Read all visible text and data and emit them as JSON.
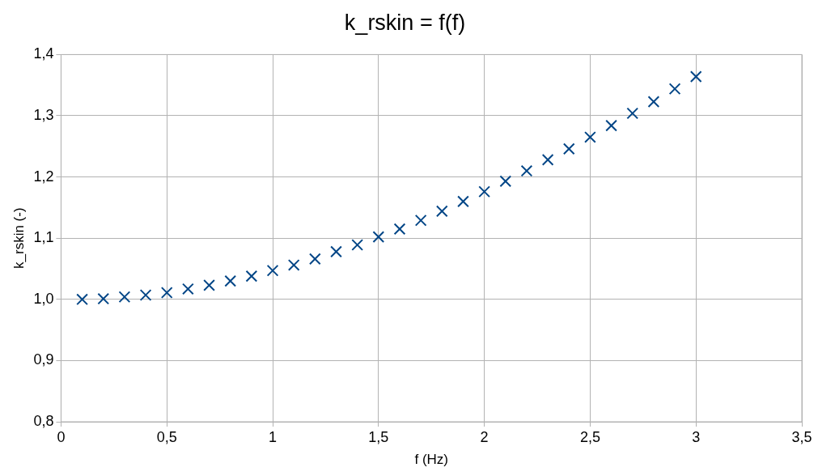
{
  "chart_data": {
    "type": "scatter",
    "title": "k_rskin = f(f)",
    "xlabel": "f (Hz)",
    "ylabel": "k_rskin (-)",
    "x": [
      0.1,
      0.2,
      0.3,
      0.4,
      0.5,
      0.6,
      0.7,
      0.8,
      0.9,
      1.0,
      1.1,
      1.2,
      1.3,
      1.4,
      1.5,
      1.6,
      1.7,
      1.8,
      1.9,
      2.0,
      2.1,
      2.2,
      2.3,
      2.4,
      2.5,
      2.6,
      2.7,
      2.8,
      2.9,
      3.0
    ],
    "series": [
      {
        "color": "#004586",
        "values": [
          1.0,
          1.001,
          1.004,
          1.007,
          1.011,
          1.017,
          1.023,
          1.03,
          1.038,
          1.047,
          1.056,
          1.066,
          1.078,
          1.089,
          1.102,
          1.115,
          1.129,
          1.144,
          1.16,
          1.176,
          1.193,
          1.21,
          1.228,
          1.246,
          1.265,
          1.284,
          1.304,
          1.323,
          1.344,
          1.364
        ]
      }
    ],
    "xlim": [
      0,
      3.5
    ],
    "xticks": [
      0,
      {
        "value": 0.5,
        "label": "0,5"
      },
      1,
      {
        "value": 1.5,
        "label": "1,5"
      },
      2,
      {
        "value": 2.5,
        "label": "2,5"
      },
      3,
      {
        "value": 3.5,
        "label": "3,5"
      }
    ],
    "ylim": [
      0.8,
      1.4
    ],
    "yticks": [
      {
        "value": 0.8,
        "label": "0,8"
      },
      {
        "value": 0.9,
        "label": "0,9"
      },
      {
        "value": 1.0,
        "label": "1,0"
      },
      {
        "value": 1.1,
        "label": "1,1"
      },
      {
        "value": 1.2,
        "label": "1,2"
      },
      {
        "value": 1.3,
        "label": "1,3"
      },
      {
        "value": 1.4,
        "label": "1,4"
      }
    ],
    "grid": true,
    "marker": "cross",
    "legend": false
  }
}
